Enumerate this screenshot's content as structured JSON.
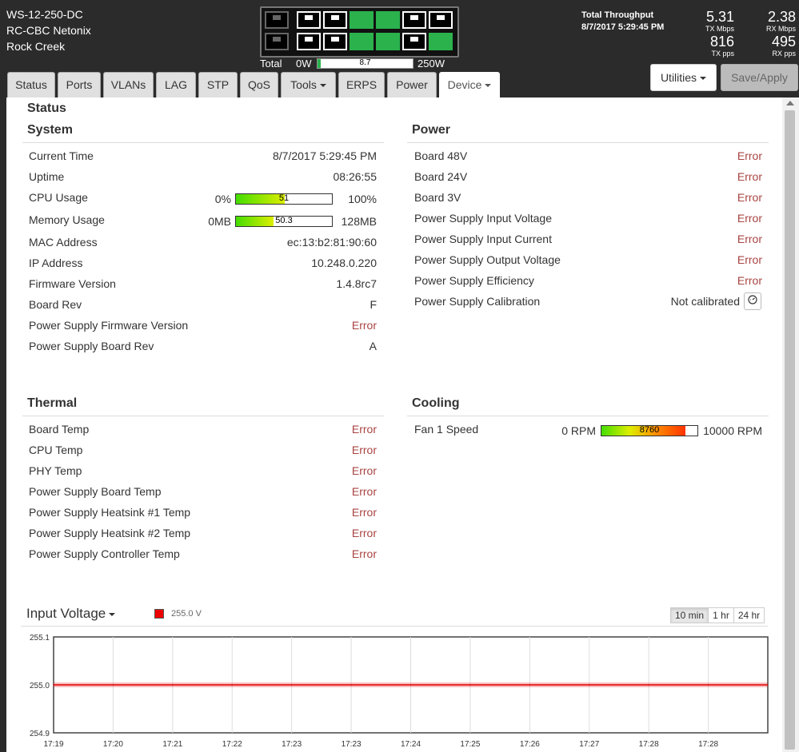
{
  "device": {
    "model": "WS-12-250-DC",
    "name": "RC-CBC Netonix",
    "location": "Rock Creek"
  },
  "ports": {
    "top": [
      "down-gray",
      "down",
      "down",
      "up",
      "up",
      "down",
      "down"
    ],
    "bottom": [
      "down-gray",
      "down",
      "down",
      "up",
      "up",
      "down",
      "up"
    ]
  },
  "power_meter": {
    "label": "Total",
    "min": "0W",
    "max": "250W",
    "value": "8.7",
    "fraction": 0.035
  },
  "throughput": {
    "title": "Total Throughput",
    "timestamp": "8/7/2017 5:29:45 PM",
    "tx_mbps": "5.31",
    "tx_mbps_label": "TX Mbps",
    "rx_mbps": "2.38",
    "rx_mbps_label": "RX Mbps",
    "tx_pps": "816",
    "tx_pps_label": "TX pps",
    "rx_pps": "495",
    "rx_pps_label": "RX pps"
  },
  "tabs": [
    {
      "label": "Status"
    },
    {
      "label": "Ports"
    },
    {
      "label": "VLANs"
    },
    {
      "label": "LAG"
    },
    {
      "label": "STP"
    },
    {
      "label": "QoS"
    },
    {
      "label": "Tools"
    },
    {
      "label": "ERPS"
    },
    {
      "label": "Power"
    },
    {
      "label": "Device"
    }
  ],
  "buttons": {
    "utilities": "Utilities",
    "save_apply": "Save/Apply"
  },
  "page_title": "Status",
  "system": {
    "title": "System",
    "current_time_label": "Current Time",
    "current_time": "8/7/2017 5:29:45 PM",
    "uptime_label": "Uptime",
    "uptime": "08:26:55",
    "cpu_label": "CPU Usage",
    "cpu_min": "0%",
    "cpu_max": "100%",
    "cpu_value": "51",
    "cpu_fraction": 0.51,
    "mem_label": "Memory Usage",
    "mem_min": "0MB",
    "mem_max": "128MB",
    "mem_value": "50.3",
    "mem_fraction": 0.393,
    "mac_label": "MAC Address",
    "mac": "ec:13:b2:81:90:60",
    "ip_label": "IP Address",
    "ip": "10.248.0.220",
    "fw_label": "Firmware Version",
    "fw": "1.4.8rc7",
    "board_rev_label": "Board Rev",
    "board_rev": "F",
    "ps_fw_label": "Power Supply Firmware Version",
    "ps_fw": "Error",
    "ps_board_rev_label": "Power Supply Board Rev",
    "ps_board_rev": "A"
  },
  "power": {
    "title": "Power",
    "rows": [
      {
        "label": "Board 48V",
        "value": "Error"
      },
      {
        "label": "Board 24V",
        "value": "Error"
      },
      {
        "label": "Board 3V",
        "value": "Error"
      },
      {
        "label": "Power Supply Input Voltage",
        "value": "Error"
      },
      {
        "label": "Power Supply Input Current",
        "value": "Error"
      },
      {
        "label": "Power Supply Output Voltage",
        "value": "Error"
      },
      {
        "label": "Power Supply Efficiency",
        "value": "Error"
      },
      {
        "label": "Power Supply Calibration",
        "value": "Not calibrated"
      }
    ],
    "calibrate_icon": "gauge-icon"
  },
  "thermal": {
    "title": "Thermal",
    "rows": [
      {
        "label": "Board Temp",
        "value": "Error"
      },
      {
        "label": "CPU Temp",
        "value": "Error"
      },
      {
        "label": "PHY Temp",
        "value": "Error"
      },
      {
        "label": "Power Supply Board Temp",
        "value": "Error"
      },
      {
        "label": "Power Supply Heatsink #1 Temp",
        "value": "Error"
      },
      {
        "label": "Power Supply Heatsink #2 Temp",
        "value": "Error"
      },
      {
        "label": "Power Supply Controller Temp",
        "value": "Error"
      }
    ]
  },
  "cooling": {
    "title": "Cooling",
    "fan_label": "Fan 1 Speed",
    "fan_min": "0 RPM",
    "fan_max": "10000 RPM",
    "fan_value": "8760",
    "fan_fraction": 0.876
  },
  "chart_panel": {
    "title": "Input Voltage",
    "ranges": [
      "10 min",
      "1 hr",
      "24 hr"
    ],
    "active_range": "10 min"
  },
  "colors": {
    "series": "#e00000",
    "port_up": "#2bb24c",
    "error": "#a94442"
  },
  "chart_data": {
    "type": "line",
    "title": "",
    "xlabel": "",
    "ylabel": "",
    "x": [
      "17:19",
      "17:20",
      "17:21",
      "17:22",
      "17:23",
      "17:23",
      "17:24",
      "17:25",
      "17:26",
      "17:27",
      "17:28",
      "17:28"
    ],
    "x_ticks": [
      "17:19",
      "17:20",
      "17:21",
      "17:22",
      "17:23",
      "17:23",
      "17:24",
      "17:25",
      "17:26",
      "17:27",
      "17:28",
      "17:28"
    ],
    "y_ticks": [
      "255.1",
      "255.0",
      "254.9"
    ],
    "ylim": [
      254.9,
      255.1
    ],
    "grid": true,
    "legend": "top-left",
    "series": [
      {
        "name": "255.0 V",
        "values": [
          255.0,
          255.0,
          255.0,
          255.0,
          255.0,
          255.0,
          255.0,
          255.0,
          255.0,
          255.0,
          255.0,
          255.0
        ]
      }
    ]
  }
}
